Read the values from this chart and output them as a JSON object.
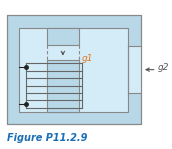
{
  "fig_width": 1.72,
  "fig_height": 1.49,
  "dpi": 100,
  "core_fill": "#b8d8e8",
  "core_edge": "#888888",
  "inner_bg": "#d4ecf7",
  "white": "#ffffff",
  "coil_color": "#666666",
  "dot_color": "#222222",
  "label_g1_color": "#e07820",
  "label_g2_color": "#555555",
  "arrow_color": "#555555",
  "caption_color": "#1a6eb5",
  "caption_text": "Figure P11.2.9",
  "caption_fontsize": 7.0
}
